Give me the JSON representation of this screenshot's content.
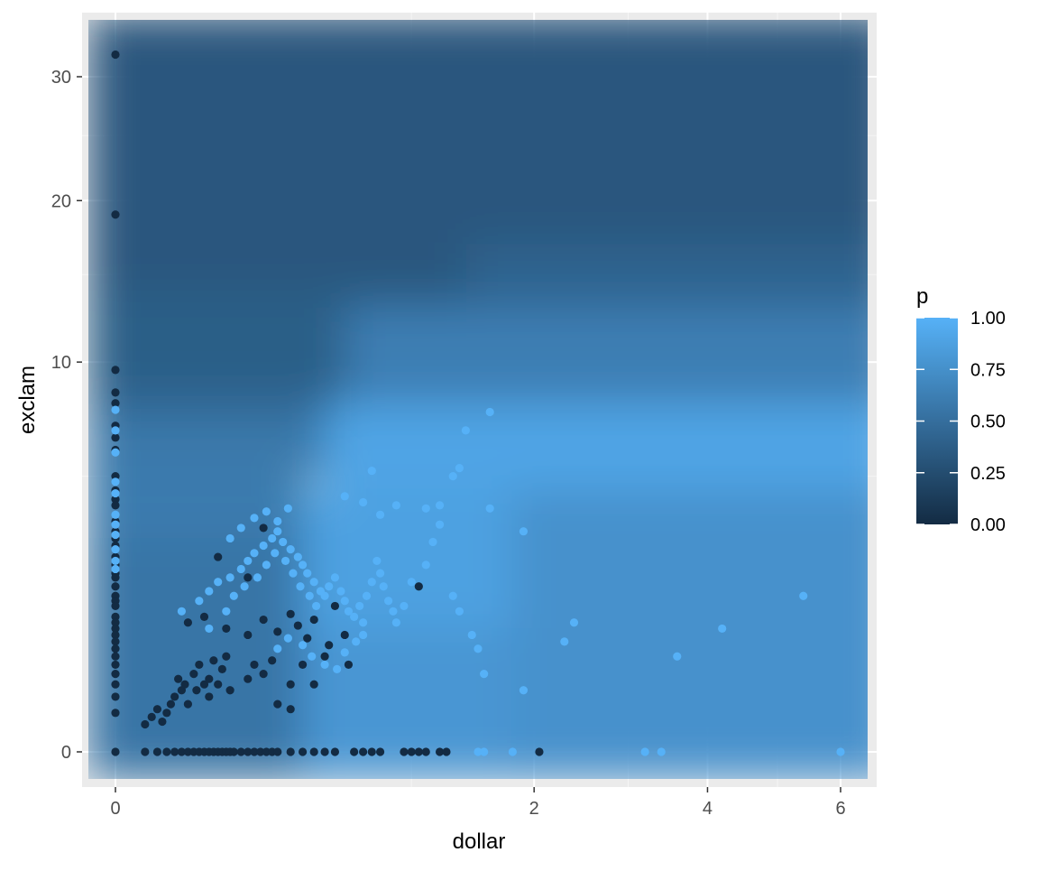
{
  "chart_data": {
    "type": "scatter",
    "title": "",
    "xlabel": "dollar",
    "ylabel": "exclam",
    "x_scale": "sqrt",
    "y_scale": "sqrt",
    "xlim": [
      0,
      6.32
    ],
    "ylim": [
      0,
      32.48
    ],
    "x_ticks": [
      0,
      2,
      4,
      6
    ],
    "y_ticks": [
      0,
      10,
      20,
      30
    ],
    "grid": true,
    "background": "#ebebeb",
    "legend": {
      "title": "p",
      "position": "right",
      "low_color": "#132b43",
      "high_color": "#56b1f7",
      "breaks": [
        0,
        0.25,
        0.5,
        0.75,
        1
      ],
      "labels": [
        "0.00",
        "0.25",
        "0.50",
        "0.75",
        "1.00"
      ]
    },
    "surface": [
      {
        "x": [
          0,
          1.4
        ],
        "y": [
          14,
          32.5
        ],
        "p": 0.33
      },
      {
        "x": [
          1.4,
          6.32
        ],
        "y": [
          17,
          32.5
        ],
        "p": 0.33
      },
      {
        "x": [
          0,
          1.4
        ],
        "y": [
          9,
          14
        ],
        "p": 0.38
      },
      {
        "x": [
          1.4,
          6.32
        ],
        "y": [
          13,
          17
        ],
        "p": 0.42
      },
      {
        "x": [
          0,
          0.6
        ],
        "y": [
          7.5,
          9
        ],
        "p": 0.42
      },
      {
        "x": [
          0.6,
          6.32
        ],
        "y": [
          8,
          13
        ],
        "p": 0.62
      },
      {
        "x": [
          0,
          0.5
        ],
        "y": [
          5,
          7.5
        ],
        "p": 0.58
      },
      {
        "x": [
          0.5,
          6.32
        ],
        "y": [
          4.5,
          8
        ],
        "p": 0.9
      },
      {
        "x": [
          0,
          0.4
        ],
        "y": [
          3,
          5
        ],
        "p": 0.6
      },
      {
        "x": [
          0.4,
          1.8
        ],
        "y": [
          1,
          4.5
        ],
        "p": 0.88
      },
      {
        "x": [
          1.8,
          6.32
        ],
        "y": [
          0,
          4.5
        ],
        "p": 0.76
      },
      {
        "x": [
          0,
          0.4
        ],
        "y": [
          0,
          3
        ],
        "p": 0.55
      },
      {
        "x": [
          0.4,
          1.8
        ],
        "y": [
          0,
          1
        ],
        "p": 0.8
      }
    ],
    "series": [
      {
        "group": "p0",
        "points": [
          [
            0,
            32
          ],
          [
            0,
            19
          ],
          [
            0,
            9.6
          ],
          [
            0,
            8.5
          ],
          [
            0,
            8
          ],
          [
            0,
            7
          ],
          [
            0,
            6.5
          ],
          [
            0,
            6
          ],
          [
            0,
            5
          ],
          [
            0,
            4.5
          ],
          [
            0,
            4.2
          ],
          [
            0,
            4
          ],
          [
            0,
            3.5
          ],
          [
            0,
            3.2
          ],
          [
            0,
            3
          ],
          [
            0,
            2.8
          ],
          [
            0,
            2.5
          ],
          [
            0,
            2.3
          ],
          [
            0,
            2.1
          ],
          [
            0,
            2
          ],
          [
            0,
            1.8
          ],
          [
            0,
            1.6
          ],
          [
            0,
            1.5
          ],
          [
            0,
            1.4
          ],
          [
            0,
            1.2
          ],
          [
            0,
            1.1
          ],
          [
            0,
            1
          ],
          [
            0,
            0.9
          ],
          [
            0,
            0.8
          ],
          [
            0,
            0.7
          ],
          [
            0,
            0.6
          ],
          [
            0,
            0.5
          ],
          [
            0,
            0.4
          ],
          [
            0,
            0.3
          ],
          [
            0,
            0.2
          ],
          [
            0,
            0.1
          ],
          [
            0,
            0
          ],
          [
            0.01,
            0.05
          ],
          [
            0.01,
            0
          ],
          [
            0.02,
            0
          ],
          [
            0.03,
            0
          ],
          [
            0.04,
            0
          ],
          [
            0.05,
            0
          ],
          [
            0.06,
            0
          ],
          [
            0.07,
            0
          ],
          [
            0.08,
            0
          ],
          [
            0.09,
            0
          ],
          [
            0.1,
            0
          ],
          [
            0.11,
            0
          ],
          [
            0.12,
            0
          ],
          [
            0.13,
            0
          ],
          [
            0.14,
            0
          ],
          [
            0.15,
            0
          ],
          [
            0.16,
            0
          ],
          [
            0.18,
            0
          ],
          [
            0.2,
            0
          ],
          [
            0.22,
            0
          ],
          [
            0.24,
            0
          ],
          [
            0.26,
            0
          ],
          [
            0.28,
            0
          ],
          [
            0.3,
            0
          ],
          [
            0.35,
            0
          ],
          [
            0.4,
            0
          ],
          [
            0.45,
            0
          ],
          [
            0.5,
            0
          ],
          [
            0.55,
            0
          ],
          [
            0.65,
            0
          ],
          [
            0.7,
            0
          ],
          [
            0.75,
            0
          ],
          [
            0.8,
            0
          ],
          [
            0.95,
            0
          ],
          [
            1.0,
            0
          ],
          [
            1.05,
            0
          ],
          [
            1.1,
            0
          ],
          [
            1.2,
            0
          ],
          [
            1.25,
            0
          ],
          [
            2.05,
            0
          ],
          [
            0.015,
            0.08
          ],
          [
            0.02,
            0.12
          ],
          [
            0.025,
            0.06
          ],
          [
            0.03,
            0.1
          ],
          [
            0.035,
            0.15
          ],
          [
            0.04,
            0.2
          ],
          [
            0.045,
            0.35
          ],
          [
            0.05,
            0.25
          ],
          [
            0.055,
            0.3
          ],
          [
            0.06,
            0.15
          ],
          [
            0.07,
            0.4
          ],
          [
            0.075,
            0.25
          ],
          [
            0.08,
            0.5
          ],
          [
            0.09,
            0.3
          ],
          [
            0.1,
            0.35
          ],
          [
            0.1,
            0.2
          ],
          [
            0.11,
            0.55
          ],
          [
            0.12,
            0.3
          ],
          [
            0.13,
            0.45
          ],
          [
            0.14,
            0.6
          ],
          [
            0.15,
            0.25
          ],
          [
            0.06,
            1.1
          ],
          [
            0.09,
            1.2
          ],
          [
            0.14,
            1.0
          ],
          [
            0.2,
            0.9
          ],
          [
            0.25,
            1.15
          ],
          [
            0.3,
            0.95
          ],
          [
            0.2,
            0.35
          ],
          [
            0.22,
            0.5
          ],
          [
            0.25,
            0.4
          ],
          [
            0.28,
            0.55
          ],
          [
            0.35,
            0.3
          ],
          [
            0.12,
            2.5
          ],
          [
            0.2,
            2.0
          ],
          [
            0.25,
            3.3
          ],
          [
            0.35,
            1.25
          ],
          [
            0.38,
            1.05
          ],
          [
            0.42,
            0.85
          ],
          [
            0.45,
            1.15
          ],
          [
            0.55,
            1.4
          ],
          [
            0.6,
            0.9
          ],
          [
            0.5,
            0.6
          ],
          [
            0.4,
            0.5
          ],
          [
            0.45,
            0.3
          ],
          [
            0.52,
            0.75
          ],
          [
            0.3,
            0.15
          ],
          [
            0.35,
            0.12
          ],
          [
            0.62,
            0.5
          ],
          [
            1.05,
            1.8
          ]
        ]
      },
      {
        "group": "p1",
        "points": [
          [
            0,
            7.7
          ],
          [
            0,
            6.8
          ],
          [
            0,
            5.9
          ],
          [
            0,
            4.8
          ],
          [
            0,
            4.4
          ],
          [
            0,
            3.7
          ],
          [
            0,
            3.4
          ],
          [
            0,
            3.1
          ],
          [
            0,
            2.7
          ],
          [
            0,
            2.4
          ],
          [
            0,
            2.2
          ],
          [
            0.05,
            1.3
          ],
          [
            0.08,
            1.5
          ],
          [
            0.1,
            1.7
          ],
          [
            0.12,
            1.9
          ],
          [
            0.15,
            2.0
          ],
          [
            0.18,
            2.2
          ],
          [
            0.2,
            2.4
          ],
          [
            0.22,
            2.6
          ],
          [
            0.25,
            2.8
          ],
          [
            0.28,
            3.0
          ],
          [
            0.3,
            3.2
          ],
          [
            0.32,
            2.9
          ],
          [
            0.35,
            2.7
          ],
          [
            0.38,
            2.5
          ],
          [
            0.4,
            2.3
          ],
          [
            0.42,
            2.1
          ],
          [
            0.45,
            1.9
          ],
          [
            0.48,
            1.7
          ],
          [
            0.5,
            1.6
          ],
          [
            0.52,
            1.8
          ],
          [
            0.55,
            2.0
          ],
          [
            0.58,
            1.7
          ],
          [
            0.6,
            1.5
          ],
          [
            0.62,
            1.3
          ],
          [
            0.65,
            1.2
          ],
          [
            0.68,
            1.4
          ],
          [
            0.7,
            1.1
          ],
          [
            0.72,
            1.6
          ],
          [
            0.75,
            1.9
          ],
          [
            0.78,
            2.4
          ],
          [
            0.8,
            2.1
          ],
          [
            0.82,
            1.8
          ],
          [
            0.85,
            1.5
          ],
          [
            0.88,
            1.3
          ],
          [
            0.9,
            1.1
          ],
          [
            0.95,
            1.4
          ],
          [
            1.0,
            1.9
          ],
          [
            1.1,
            2.3
          ],
          [
            1.15,
            2.9
          ],
          [
            1.2,
            3.4
          ],
          [
            1.3,
            1.6
          ],
          [
            1.35,
            1.3
          ],
          [
            0.1,
            1.0
          ],
          [
            0.14,
            1.3
          ],
          [
            0.16,
            1.6
          ],
          [
            0.19,
            1.8
          ],
          [
            0.23,
            2.0
          ],
          [
            0.26,
            2.3
          ],
          [
            0.29,
            2.6
          ],
          [
            0.33,
            2.4
          ],
          [
            0.36,
            2.1
          ],
          [
            0.39,
            1.8
          ],
          [
            0.43,
            1.6
          ],
          [
            0.46,
            1.4
          ],
          [
            0.3,
            0.7
          ],
          [
            0.34,
            0.85
          ],
          [
            0.4,
            0.75
          ],
          [
            0.44,
            0.6
          ],
          [
            0.5,
            0.5
          ],
          [
            0.56,
            0.45
          ],
          [
            0.6,
            0.65
          ],
          [
            0.66,
            0.8
          ],
          [
            0.7,
            0.9
          ],
          [
            0.15,
            3.0
          ],
          [
            0.18,
            3.3
          ],
          [
            0.22,
            3.6
          ],
          [
            0.26,
            3.8
          ],
          [
            0.3,
            3.5
          ],
          [
            0.34,
            3.9
          ],
          [
            0.6,
            4.3
          ],
          [
            0.7,
            4.1
          ],
          [
            0.8,
            3.7
          ],
          [
            0.9,
            4.0
          ],
          [
            1.1,
            3.9
          ],
          [
            1.2,
            4.0
          ],
          [
            0.75,
            5.2
          ],
          [
            1.3,
            5.0
          ],
          [
            1.6,
            3.9
          ],
          [
            1.4,
            6.8
          ],
          [
            1.6,
            7.6
          ],
          [
            1.9,
            3.2
          ],
          [
            1.35,
            5.3
          ],
          [
            1.5,
            0.7
          ],
          [
            1.55,
            0.4
          ],
          [
            1.45,
            0.9
          ],
          [
            1.5,
            0
          ],
          [
            1.55,
            0
          ],
          [
            1.8,
            0
          ],
          [
            3.2,
            0
          ],
          [
            3.4,
            0
          ],
          [
            6.0,
            0
          ],
          [
            2.4,
            1.1
          ],
          [
            4.2,
            1.0
          ],
          [
            5.4,
            1.6
          ],
          [
            3.6,
            0.6
          ],
          [
            2.3,
            0.8
          ],
          [
            1.9,
            0.25
          ]
        ]
      }
    ]
  }
}
